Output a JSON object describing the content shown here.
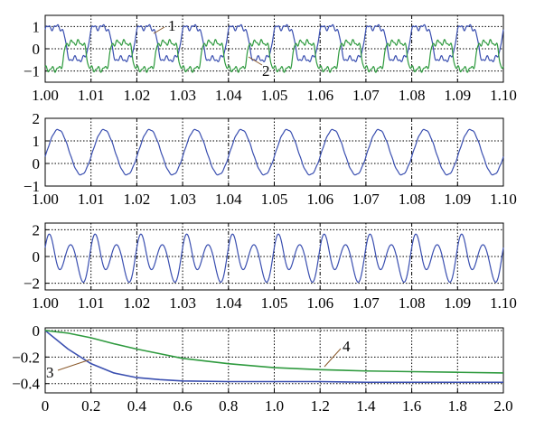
{
  "chart_data": [
    {
      "type": "line",
      "xlim": [
        1.0,
        1.1
      ],
      "ylim": [
        -1.5,
        1.5
      ],
      "x_ticks": [
        "1.00",
        "1.01",
        "1.02",
        "1.03",
        "1.04",
        "1.05",
        "1.06",
        "1.07",
        "1.08",
        "1.09",
        "1.10"
      ],
      "y_ticks": [
        "1",
        "0",
        "−1"
      ],
      "y_tick_values": [
        1,
        0,
        -1
      ],
      "grid": true,
      "annotations": [
        "1",
        "2"
      ],
      "series": [
        {
          "color": "#3a4fb0",
          "shape": "distorted periodic current, period 0.01, peaks ≈1, troughs ≈ −0.5",
          "values": {
            "x": [
              1.0,
              1.0025,
              1.005,
              1.0075,
              1.01
            ],
            "y": [
              0.3,
              1.0,
              0.35,
              -0.5,
              0.3
            ]
          }
        },
        {
          "color": "#2e9a3e",
          "shape": "distorted periodic current, period 0.01, peaks ≈0.35, troughs ≈ −1",
          "values": {
            "x": [
              1.0,
              1.0025,
              1.005,
              1.0075,
              1.01
            ],
            "y": [
              -0.7,
              -0.1,
              0.35,
              -0.95,
              -0.7
            ]
          }
        }
      ]
    },
    {
      "type": "line",
      "xlim": [
        1.0,
        1.1
      ],
      "ylim": [
        -1,
        2
      ],
      "x_ticks": [
        "1.00",
        "1.01",
        "1.02",
        "1.03",
        "1.04",
        "1.05",
        "1.06",
        "1.07",
        "1.08",
        "1.09",
        "1.10"
      ],
      "y_ticks": [
        "2",
        "1",
        "0",
        "−1"
      ],
      "y_tick_values": [
        2,
        1,
        0,
        -1
      ],
      "grid": true,
      "series": [
        {
          "color": "#3a4fb0",
          "shape": "sinusoid, period 0.01, range −0.5 to 1.5",
          "values": {
            "x": [
              1.0,
              1.0025,
              1.005,
              1.0075,
              1.01
            ],
            "y": [
              0.3,
              1.5,
              0.5,
              -0.5,
              0.3
            ]
          }
        }
      ]
    },
    {
      "type": "line",
      "xlim": [
        1.0,
        1.1
      ],
      "ylim": [
        -2.5,
        2.5
      ],
      "x_ticks": [
        "1.00",
        "1.01",
        "1.02",
        "1.03",
        "1.04",
        "1.05",
        "1.06",
        "1.07",
        "1.08",
        "1.09",
        "1.10"
      ],
      "y_ticks": [
        "2",
        "0",
        "−2"
      ],
      "y_tick_values": [
        2,
        0,
        -2
      ],
      "grid": true,
      "series": [
        {
          "color": "#3a4fb0",
          "shape": "oscillation with fundamental + 2nd harmonic, period 0.01, range ≈ −2 to 1.6",
          "values": {
            "x": [
              1.0,
              1.0025,
              1.005,
              1.0075,
              1.01
            ],
            "y": [
              0,
              1.5,
              -1.8,
              1.5,
              0
            ]
          }
        }
      ]
    },
    {
      "type": "line",
      "xlim": [
        0,
        2.0
      ],
      "ylim": [
        -0.47,
        0.02
      ],
      "x_ticks": [
        "0",
        "0.2",
        "0.4",
        "0.6",
        "0.8",
        "1.0",
        "1.2",
        "1.4",
        "1.6",
        "1.8",
        "2.0"
      ],
      "y_ticks": [
        "0",
        "−0.2",
        "−0.4"
      ],
      "y_tick_values": [
        0,
        -0.2,
        -0.4
      ],
      "grid": true,
      "annotations": [
        "3",
        "4"
      ],
      "series": [
        {
          "color": "#3a4fb0",
          "x": [
            0,
            0.1,
            0.2,
            0.3,
            0.4,
            0.5,
            0.6,
            0.8,
            1.0,
            1.2,
            1.4,
            1.6,
            1.8,
            2.0
          ],
          "y": [
            0,
            -0.14,
            -0.25,
            -0.32,
            -0.355,
            -0.37,
            -0.38,
            -0.385,
            -0.385,
            -0.385,
            -0.39,
            -0.39,
            -0.39,
            -0.39
          ]
        },
        {
          "color": "#2e9a3e",
          "x": [
            0,
            0.1,
            0.2,
            0.3,
            0.4,
            0.5,
            0.6,
            0.8,
            1.0,
            1.2,
            1.4,
            1.6,
            1.8,
            2.0
          ],
          "y": [
            0,
            -0.02,
            -0.055,
            -0.1,
            -0.14,
            -0.175,
            -0.21,
            -0.25,
            -0.28,
            -0.295,
            -0.305,
            -0.31,
            -0.315,
            -0.32
          ]
        }
      ]
    }
  ]
}
